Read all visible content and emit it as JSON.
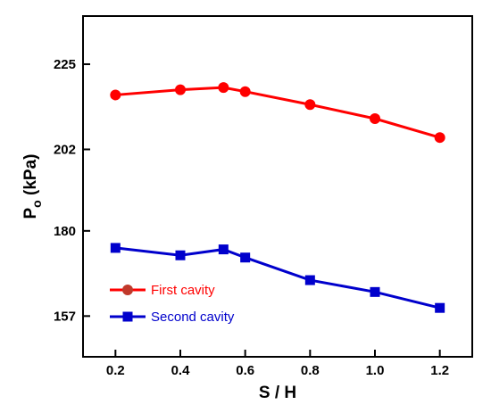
{
  "chart_data": {
    "type": "line",
    "xlabel": "S / H",
    "ylabel_main": "P",
    "ylabel_sub": "o",
    "ylabel_unit": "(kPa)",
    "xlim": [
      0.1,
      1.3
    ],
    "ylim": [
      146,
      238
    ],
    "x_ticks": [
      0.2,
      0.4,
      0.6,
      0.8,
      1.0,
      1.2
    ],
    "x_tick_labels": [
      "0.2",
      "0.4",
      "0.6",
      "0.8",
      "1.0",
      "1.2"
    ],
    "y_ticks": [
      157,
      180,
      202,
      225
    ],
    "y_tick_labels": [
      "157",
      "180",
      "202",
      "225"
    ],
    "grid": false,
    "legend_position": "bottom-left",
    "series": [
      {
        "name": "First cavity",
        "color": "#ff0000",
        "legend_text_color": "#ff0000",
        "marker": "circle",
        "marker_color": "#ff0000",
        "legend_marker_color": "#c0392b",
        "x": [
          0.2,
          0.4,
          0.533,
          0.6,
          0.8,
          1.0,
          1.2
        ],
        "y": [
          216.7,
          218.1,
          218.7,
          217.6,
          214.1,
          210.3,
          205.2
        ]
      },
      {
        "name": "Second cavity",
        "color": "#0000cc",
        "legend_text_color": "#0000cc",
        "marker": "square",
        "marker_color": "#0000cc",
        "legend_marker_color": "#0000cc",
        "x": [
          0.2,
          0.4,
          0.533,
          0.6,
          0.8,
          1.0,
          1.2
        ],
        "y": [
          175.4,
          173.4,
          175.0,
          172.8,
          166.7,
          163.5,
          159.2
        ]
      }
    ]
  }
}
